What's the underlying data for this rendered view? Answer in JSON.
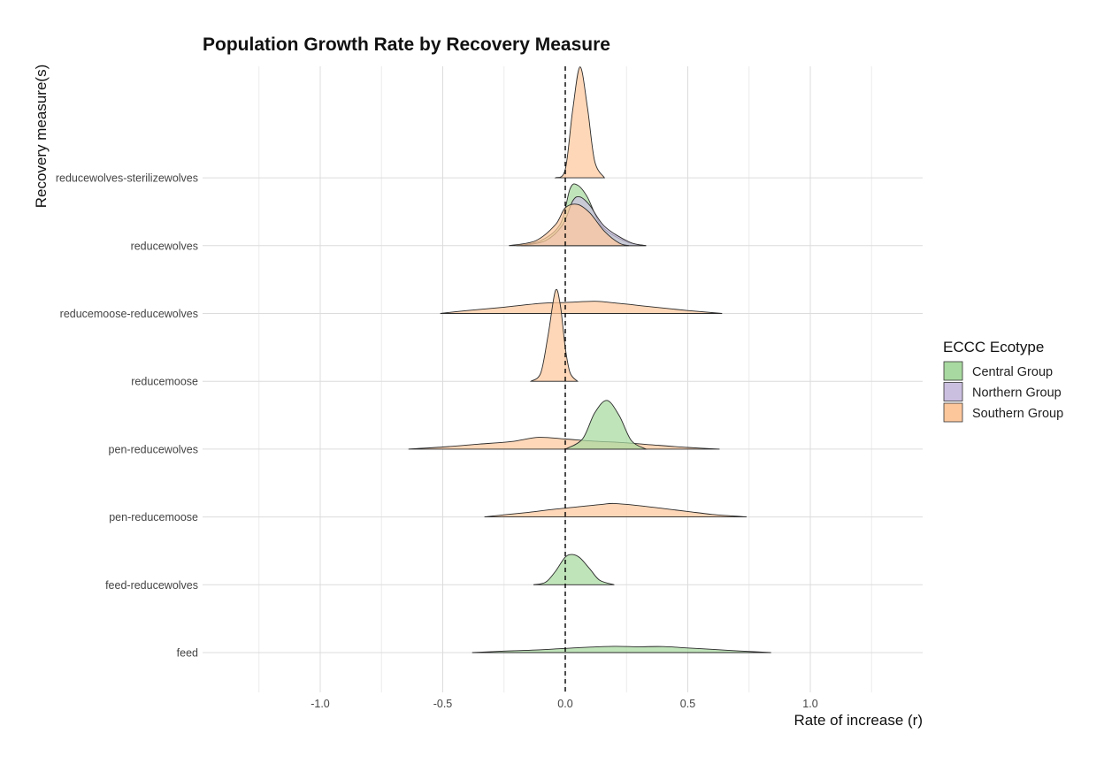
{
  "chart_data": {
    "type": "ridgeline",
    "title": "Population Growth Rate by Recovery Measure",
    "xlabel": "Rate of increase (r)",
    "ylabel": "Recovery measure(s)",
    "xlim": [
      -1.45,
      1.45
    ],
    "x_ticks": [
      -1.0,
      -0.5,
      0.0,
      0.5,
      1.0
    ],
    "x_tick_labels": [
      "-1.0",
      "-0.5",
      "0.0",
      "0.5",
      "1.0"
    ],
    "reference_line_x": 0.0,
    "grid": true,
    "categories": [
      "feed",
      "feed-reducewolves",
      "pen-reducemoose",
      "pen-reducewolves",
      "reducemoose",
      "reducemoose-reducewolves",
      "reducewolves",
      "reducewolves-sterilizewolves"
    ],
    "legend": {
      "title": "ECCC Ecotype",
      "position": "right",
      "entries": [
        {
          "name": "Central Group",
          "color": "#a8d9a0"
        },
        {
          "name": "Northern Group",
          "color": "#cbbfe0"
        },
        {
          "name": "Southern Group",
          "color": "#fdc79c"
        }
      ]
    },
    "series": [
      {
        "category": "feed",
        "group": "Central Group",
        "x": [
          -0.38,
          -0.25,
          -0.12,
          0.0,
          0.1,
          0.2,
          0.3,
          0.4,
          0.5,
          0.62,
          0.72,
          0.84
        ],
        "density": [
          0.0,
          0.18,
          0.3,
          0.5,
          0.65,
          0.75,
          0.7,
          0.72,
          0.55,
          0.35,
          0.18,
          0.0
        ]
      },
      {
        "category": "feed-reducewolves",
        "group": "Central Group",
        "x": [
          -0.13,
          -0.08,
          -0.04,
          0.0,
          0.03,
          0.06,
          0.1,
          0.14,
          0.2
        ],
        "density": [
          0.0,
          0.3,
          1.6,
          3.3,
          3.6,
          3.2,
          1.9,
          0.55,
          0.0
        ]
      },
      {
        "category": "pen-reducemoose",
        "group": "Southern Group",
        "x": [
          -0.33,
          -0.25,
          -0.15,
          -0.05,
          0.05,
          0.15,
          0.2,
          0.3,
          0.4,
          0.5,
          0.6,
          0.74
        ],
        "density": [
          0.0,
          0.25,
          0.55,
          0.9,
          1.2,
          1.5,
          1.6,
          1.35,
          1.0,
          0.65,
          0.3,
          0.0
        ]
      },
      {
        "category": "pen-reducewolves",
        "group": "Southern Group",
        "x": [
          -0.64,
          -0.5,
          -0.35,
          -0.22,
          -0.11,
          0.0,
          0.12,
          0.25,
          0.38,
          0.5,
          0.63
        ],
        "density": [
          0.0,
          0.25,
          0.6,
          0.9,
          1.4,
          1.2,
          0.95,
          0.75,
          0.45,
          0.2,
          0.0
        ]
      },
      {
        "category": "pen-reducewolves",
        "group": "Central Group",
        "x": [
          0.0,
          0.07,
          0.12,
          0.17,
          0.22,
          0.27,
          0.33
        ],
        "density": [
          0.0,
          1.2,
          4.3,
          5.8,
          4.0,
          1.0,
          0.0
        ]
      },
      {
        "category": "reducemoose",
        "group": "Southern Group",
        "x": [
          -0.14,
          -0.1,
          -0.07,
          -0.04,
          -0.02,
          0.0,
          0.02,
          0.05
        ],
        "density": [
          0.0,
          1.0,
          5.5,
          10.8,
          9.0,
          4.0,
          1.0,
          0.0
        ]
      },
      {
        "category": "reducemoose-reducewolves",
        "group": "Southern Group",
        "x": [
          -0.51,
          -0.4,
          -0.25,
          -0.1,
          0.0,
          0.12,
          0.22,
          0.35,
          0.5,
          0.64
        ],
        "density": [
          0.0,
          0.35,
          0.75,
          1.2,
          1.3,
          1.45,
          1.2,
          0.8,
          0.35,
          0.0
        ]
      },
      {
        "category": "reducewolves",
        "group": "Central Group",
        "x": [
          -0.2,
          -0.1,
          -0.02,
          0.02,
          0.05,
          0.09,
          0.15,
          0.25,
          0.33
        ],
        "density": [
          0.0,
          0.6,
          2.6,
          6.8,
          7.2,
          5.8,
          2.3,
          0.45,
          0.0
        ]
      },
      {
        "category": "reducewolves",
        "group": "Northern Group",
        "x": [
          -0.18,
          -0.08,
          -0.01,
          0.03,
          0.06,
          0.1,
          0.16,
          0.26,
          0.33
        ],
        "density": [
          0.0,
          0.6,
          2.5,
          5.3,
          5.8,
          4.8,
          2.3,
          0.45,
          0.0
        ]
      },
      {
        "category": "reducewolves",
        "group": "Southern Group",
        "x": [
          -0.23,
          -0.12,
          -0.04,
          0.0,
          0.05,
          0.1,
          0.16,
          0.22,
          0.26
        ],
        "density": [
          0.0,
          0.6,
          2.5,
          4.5,
          4.9,
          3.9,
          1.7,
          0.3,
          0.0
        ]
      },
      {
        "category": "reducewolves-sterilizewolves",
        "group": "Southern Group",
        "x": [
          -0.04,
          0.0,
          0.03,
          0.06,
          0.09,
          0.12,
          0.16
        ],
        "density": [
          0.0,
          1.0,
          8.0,
          13.2,
          8.5,
          2.0,
          0.0
        ]
      }
    ]
  }
}
